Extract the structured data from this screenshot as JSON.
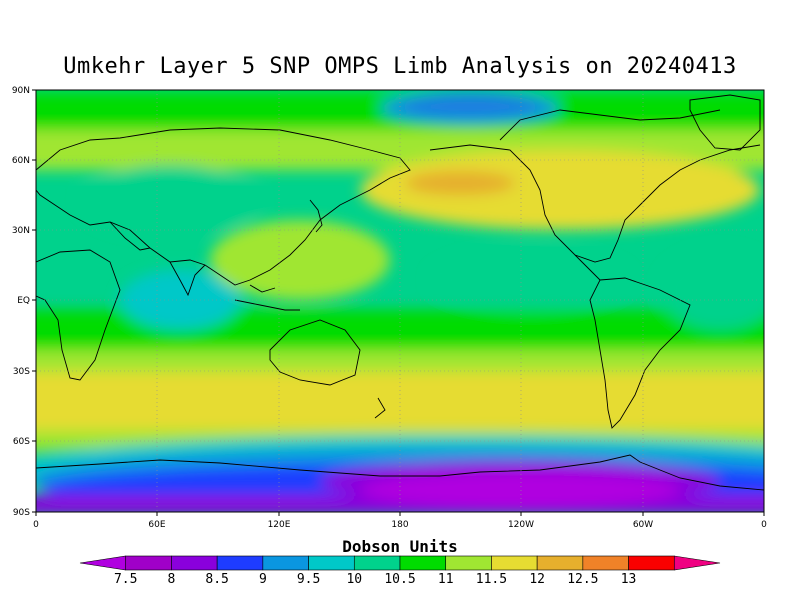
{
  "title": "Umkehr Layer 5 SNP OMPS Limb Analysis on 20240413",
  "lat_labels": [
    "90N",
    "60N",
    "30N",
    "EQ",
    "30S",
    "60S",
    "90S"
  ],
  "lon_labels": [
    "0",
    "60E",
    "120E",
    "180",
    "120W",
    "60W",
    "0"
  ],
  "colorbar": {
    "title": "Dobson Units",
    "ticks": [
      "7.5",
      "8",
      "8.5",
      "9",
      "9.5",
      "10",
      "10.5",
      "11",
      "11.5",
      "12",
      "12.5",
      "13"
    ],
    "colors": [
      "#b000e0",
      "#a000c8",
      "#8a00dc",
      "#1e3cff",
      "#0a96e0",
      "#00c8c8",
      "#00d28c",
      "#00dc00",
      "#a0e632",
      "#e6dc32",
      "#e6af2d",
      "#f08228",
      "#fa0000",
      "#f00082"
    ]
  },
  "colors": {
    "ocean_base": "#00d28c",
    "land_line": "#000000",
    "grid": "#a0a0a0"
  }
}
